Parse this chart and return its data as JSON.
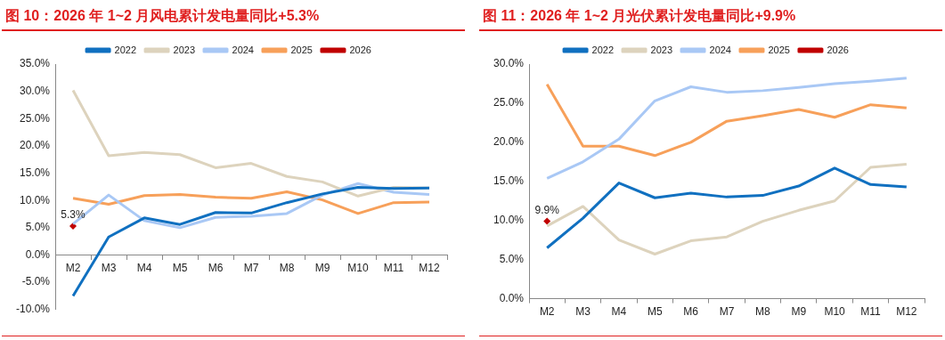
{
  "chart_data": [
    {
      "type": "line",
      "title": "图 10：2026 年 1~2 月风电累计发电量同比+5.3%",
      "categories": [
        "M2",
        "M3",
        "M4",
        "M5",
        "M6",
        "M7",
        "M8",
        "M9",
        "M10",
        "M11",
        "M12"
      ],
      "series": [
        {
          "name": "2022",
          "color": "#1070c0",
          "values": [
            -7.5,
            3.3,
            6.8,
            5.6,
            7.8,
            7.7,
            9.6,
            11.2,
            12.4,
            12.2,
            12.3
          ]
        },
        {
          "name": "2023",
          "color": "#ddd3bd",
          "values": [
            30.2,
            18.2,
            18.8,
            18.4,
            16.0,
            16.8,
            14.4,
            13.4,
            10.8,
            12.4,
            12.3
          ]
        },
        {
          "name": "2024",
          "color": "#a9c8f5",
          "values": [
            5.7,
            11.0,
            6.3,
            5.0,
            6.9,
            7.1,
            7.6,
            11.0,
            13.1,
            11.5,
            11.1
          ]
        },
        {
          "name": "2025",
          "color": "#f7a05a",
          "values": [
            10.4,
            9.3,
            10.9,
            11.1,
            10.6,
            10.4,
            11.6,
            10.1,
            7.6,
            9.6,
            9.7
          ]
        },
        {
          "name": "2026",
          "color": "#c00000",
          "marker": "diamond",
          "values": [
            5.3,
            null,
            null,
            null,
            null,
            null,
            null,
            null,
            null,
            null,
            null
          ],
          "value_labels": [
            "5.3%",
            null,
            null,
            null,
            null,
            null,
            null,
            null,
            null,
            null,
            null
          ]
        }
      ],
      "ylim": [
        -10,
        35
      ],
      "yticks": [
        {
          "value": -10,
          "label": "-10.0%"
        },
        {
          "value": -5,
          "label": "-5.0%"
        },
        {
          "value": 0,
          "label": "0.0%"
        },
        {
          "value": 5,
          "label": "5.0%"
        },
        {
          "value": 10,
          "label": "10.0%"
        },
        {
          "value": 15,
          "label": "15.0%"
        },
        {
          "value": 20,
          "label": "20.0%"
        },
        {
          "value": 25,
          "label": "25.0%"
        },
        {
          "value": 30,
          "label": "30.0%"
        },
        {
          "value": 35,
          "label": "35.0%"
        }
      ],
      "marker": "none",
      "grid": false,
      "legend": "top"
    },
    {
      "type": "line",
      "title": "图 11：2026 年 1~2 月光伏累计发电量同比+9.9%",
      "categories": [
        "M2",
        "M3",
        "M4",
        "M5",
        "M6",
        "M7",
        "M8",
        "M9",
        "M10",
        "M11",
        "M12"
      ],
      "series": [
        {
          "name": "2022",
          "color": "#1070c0",
          "values": [
            6.5,
            10.3,
            14.8,
            12.9,
            13.5,
            13.0,
            13.2,
            14.4,
            16.7,
            14.6,
            14.3
          ]
        },
        {
          "name": "2023",
          "color": "#ddd3bd",
          "values": [
            9.3,
            11.8,
            7.5,
            5.7,
            7.4,
            7.9,
            9.9,
            11.3,
            12.5,
            16.8,
            17.2
          ]
        },
        {
          "name": "2024",
          "color": "#a9c8f5",
          "values": [
            15.4,
            17.5,
            20.4,
            25.3,
            27.1,
            26.4,
            26.6,
            27.0,
            27.5,
            27.8,
            28.2
          ]
        },
        {
          "name": "2025",
          "color": "#f7a05a",
          "values": [
            27.4,
            19.5,
            19.5,
            18.3,
            20.0,
            22.7,
            23.4,
            24.2,
            23.2,
            24.8,
            24.4
          ]
        },
        {
          "name": "2026",
          "color": "#c00000",
          "marker": "diamond",
          "values": [
            9.9,
            null,
            null,
            null,
            null,
            null,
            null,
            null,
            null,
            null,
            null
          ],
          "value_labels": [
            "9.9%",
            null,
            null,
            null,
            null,
            null,
            null,
            null,
            null,
            null,
            null
          ]
        }
      ],
      "ylim": [
        0,
        30
      ],
      "yticks": [
        {
          "value": 0,
          "label": "0.0%"
        },
        {
          "value": 5,
          "label": "5.0%"
        },
        {
          "value": 10,
          "label": "10.0%"
        },
        {
          "value": 15,
          "label": "15.0%"
        },
        {
          "value": 20,
          "label": "20.0%"
        },
        {
          "value": 25,
          "label": "25.0%"
        },
        {
          "value": 30,
          "label": "30.0%"
        }
      ],
      "marker": "none",
      "grid": false,
      "legend": "top"
    }
  ]
}
